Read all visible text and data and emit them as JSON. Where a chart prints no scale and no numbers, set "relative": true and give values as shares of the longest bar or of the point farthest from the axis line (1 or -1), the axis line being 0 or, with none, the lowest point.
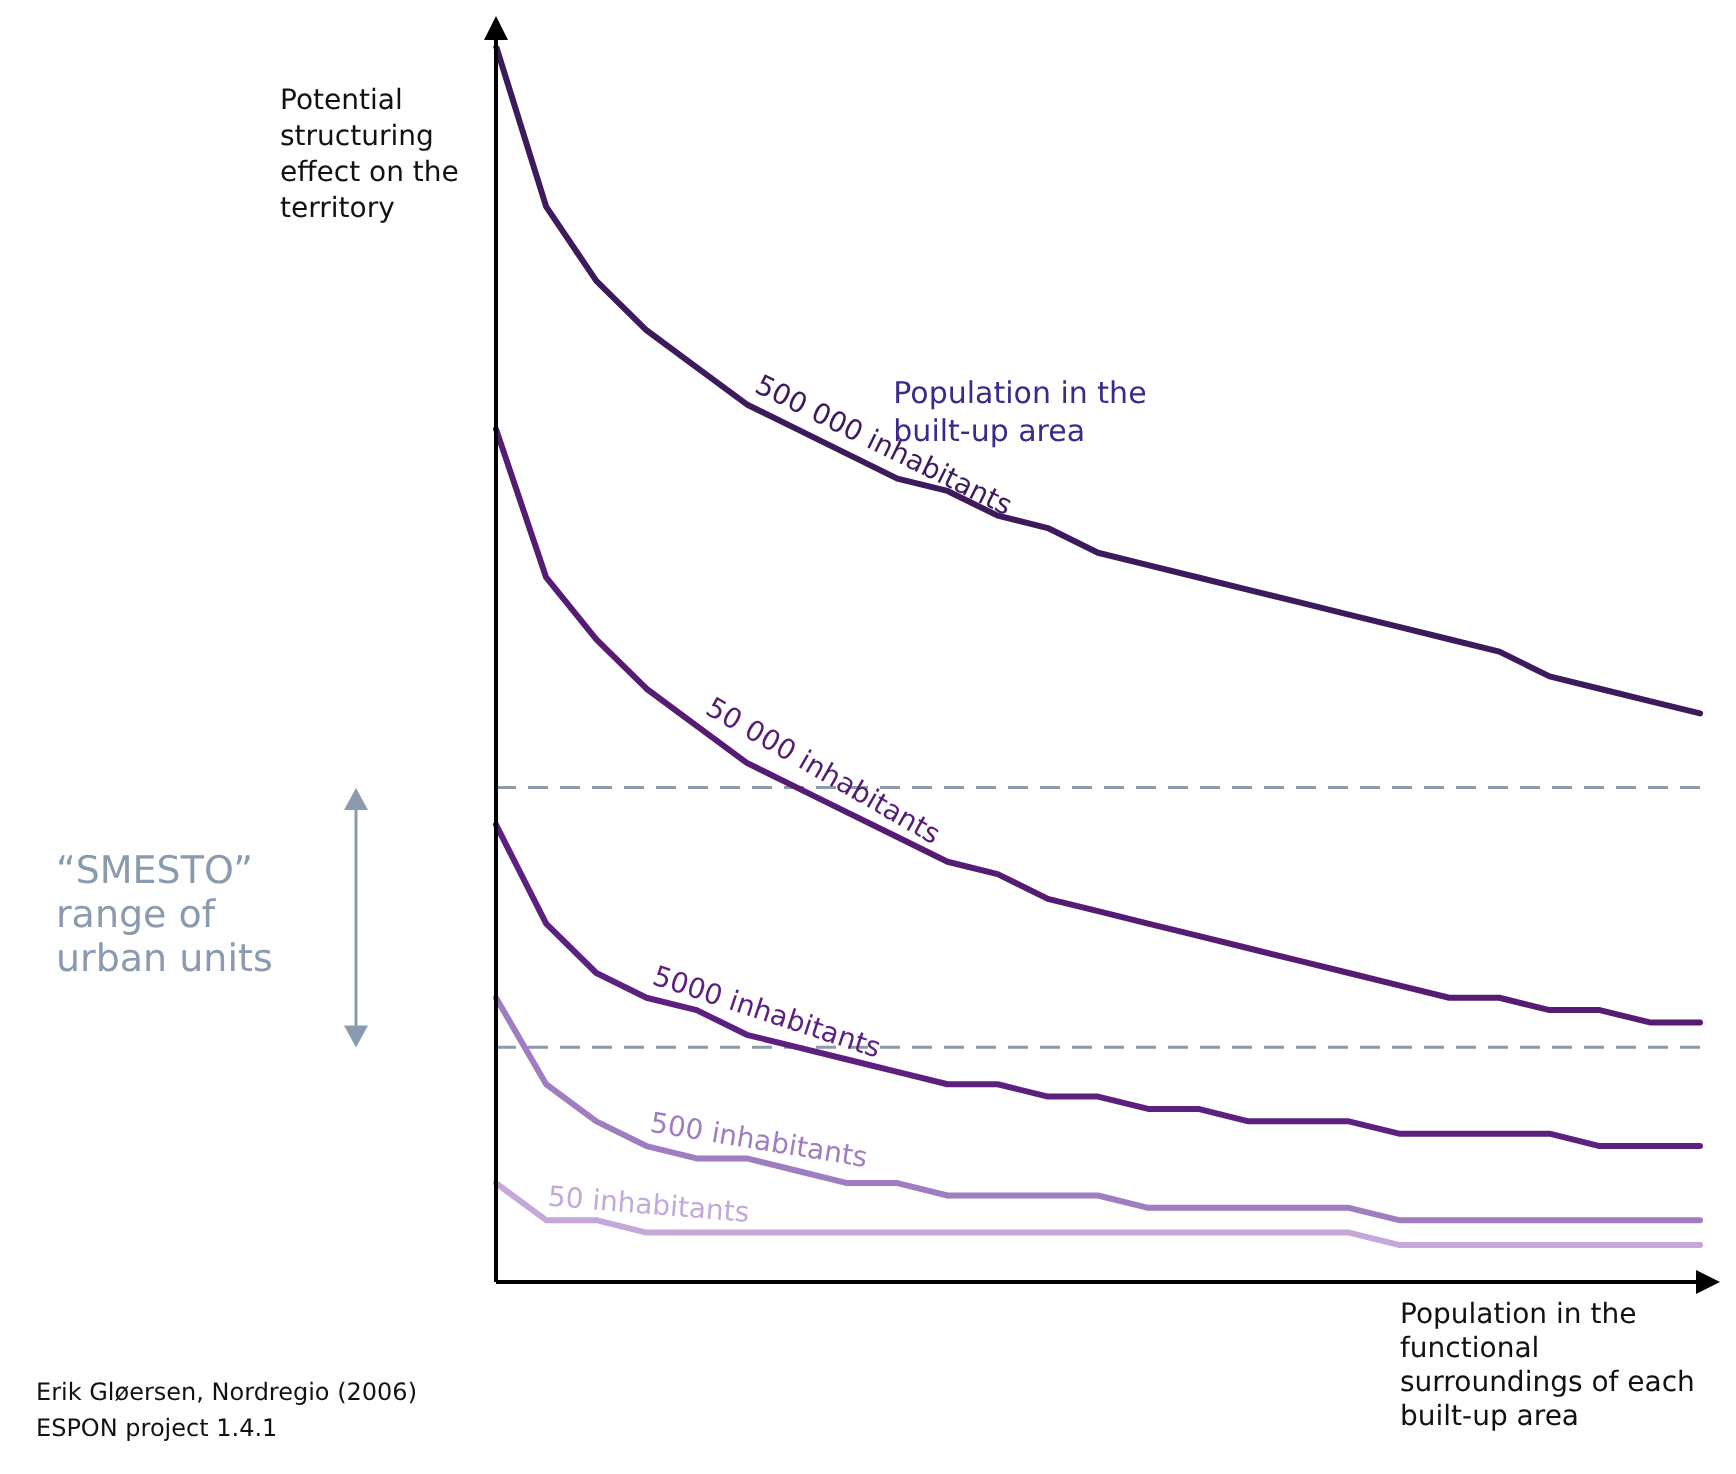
{
  "chart_data": {
    "type": "line",
    "relative": true,
    "marker": "none",
    "line_style": "solid",
    "ylabel": "Potential structuring effect on the territory",
    "xlabel": "Population in the functional surroundings of each built-up area",
    "legend_title": "Population in the built-up area",
    "categories": [
      null,
      null,
      null,
      null,
      null,
      null,
      null,
      null,
      null,
      null,
      null,
      null,
      null,
      null,
      null,
      null,
      null,
      null,
      null,
      null,
      null,
      null,
      null,
      null,
      null
    ],
    "series": [
      {
        "name": "500 000 inhabitants",
        "color": "#3d1a5c",
        "values": [
          1.0,
          0.87,
          0.81,
          0.77,
          0.74,
          0.71,
          0.69,
          0.67,
          0.65,
          0.64,
          0.62,
          0.61,
          0.59,
          0.58,
          0.57,
          0.56,
          0.55,
          0.54,
          0.53,
          0.52,
          0.51,
          0.49,
          0.48,
          0.47,
          0.46
        ]
      },
      {
        "name": "50 000 inhabitants",
        "color": "#561c74",
        "values": [
          0.69,
          0.57,
          0.52,
          0.48,
          0.45,
          0.42,
          0.4,
          0.38,
          0.36,
          0.34,
          0.33,
          0.31,
          0.3,
          0.29,
          0.28,
          0.27,
          0.26,
          0.25,
          0.24,
          0.23,
          0.23,
          0.22,
          0.22,
          0.21,
          0.21
        ]
      },
      {
        "name": "5000 inhabitants",
        "color": "#5e2080",
        "values": [
          0.37,
          0.29,
          0.25,
          0.23,
          0.22,
          0.2,
          0.19,
          0.18,
          0.17,
          0.16,
          0.16,
          0.15,
          0.15,
          0.14,
          0.14,
          0.13,
          0.13,
          0.13,
          0.12,
          0.12,
          0.12,
          0.12,
          0.11,
          0.11,
          0.11
        ]
      },
      {
        "name": "500 inhabitants",
        "color": "#a07cc0",
        "values": [
          0.23,
          0.16,
          0.13,
          0.11,
          0.1,
          0.1,
          0.09,
          0.08,
          0.08,
          0.07,
          0.07,
          0.07,
          0.07,
          0.06,
          0.06,
          0.06,
          0.06,
          0.06,
          0.05,
          0.05,
          0.05,
          0.05,
          0.05,
          0.05,
          0.05
        ]
      },
      {
        "name": "50 inhabitants",
        "color": "#c4a8d8",
        "values": [
          0.08,
          0.05,
          0.05,
          0.04,
          0.04,
          0.04,
          0.04,
          0.04,
          0.04,
          0.04,
          0.04,
          0.04,
          0.04,
          0.04,
          0.04,
          0.04,
          0.04,
          0.04,
          0.03,
          0.03,
          0.03,
          0.03,
          0.03,
          0.03,
          0.03
        ]
      }
    ],
    "ref_lines": [
      {
        "axis": "y",
        "value": 0.4,
        "color": "#8a9bb0",
        "line_style": "dashed"
      },
      {
        "axis": "y",
        "value": 0.19,
        "color": "#8a9bb0",
        "line_style": "dashed"
      }
    ],
    "annotations": [
      "“SMESTO” range of urban units",
      "Erik Gløersen, Nordregio (2006)",
      "ESPON project 1.4.1"
    ]
  }
}
